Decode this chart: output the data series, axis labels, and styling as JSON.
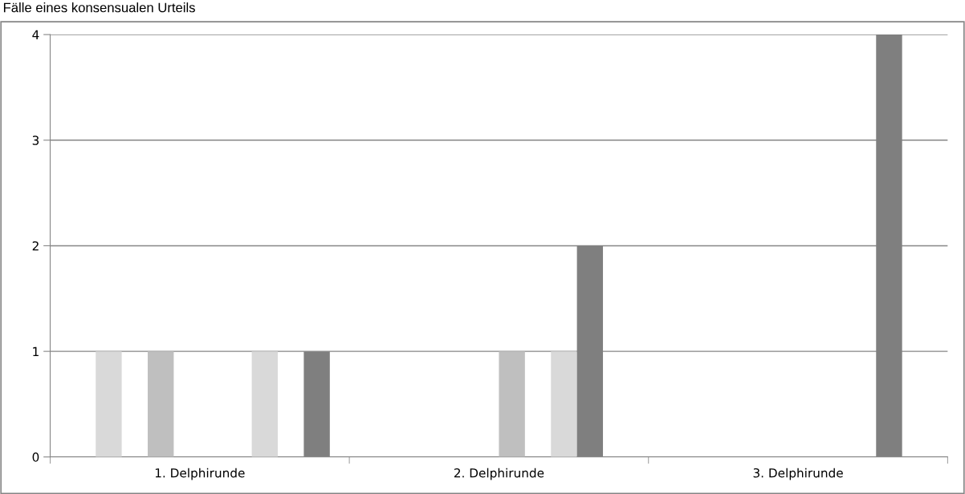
{
  "chart_data": {
    "type": "bar",
    "title": "Fälle eines konsensualen Urteils",
    "categories": [
      "1. Delphirunde",
      "2. Delphirunde",
      "3. Delphirunde"
    ],
    "series": [
      {
        "color": "#d9d9d9",
        "values": [
          0,
          0,
          0
        ]
      },
      {
        "color": "#d9d9d9",
        "values": [
          1,
          0,
          0
        ]
      },
      {
        "color": "#bfbfbf",
        "values": [
          0,
          0,
          0
        ]
      },
      {
        "color": "#bfbfbf",
        "values": [
          1,
          0,
          0
        ]
      },
      {
        "color": "#bfbfbf",
        "values": [
          0,
          0,
          0
        ]
      },
      {
        "color": "#bfbfbf",
        "values": [
          0,
          1,
          0
        ]
      },
      {
        "color": "#d9d9d9",
        "values": [
          0,
          0,
          0
        ]
      },
      {
        "color": "#d9d9d9",
        "values": [
          1,
          1,
          0
        ]
      },
      {
        "color": "#7f7f7f",
        "values": [
          0,
          2,
          4
        ]
      },
      {
        "color": "#7f7f7f",
        "values": [
          1,
          0,
          0
        ]
      }
    ],
    "ylim": [
      0,
      4
    ],
    "yticks": [
      0,
      1,
      2,
      3,
      4
    ],
    "grid": "y",
    "legend": false
  }
}
